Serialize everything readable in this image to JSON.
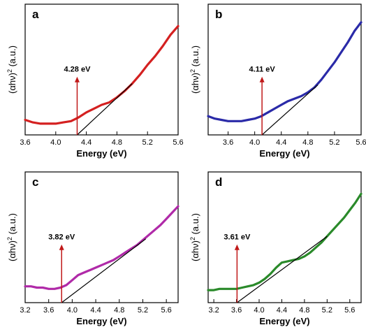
{
  "chart_data": [
    {
      "type": "line",
      "panel": "a",
      "xlabel": "Energy (eV)",
      "ylabel": "(αhν)2 (a.u.)",
      "xlim": [
        3.6,
        5.6
      ],
      "xticks": [
        "3.6",
        "4.0",
        "4.4",
        "4.8",
        "5.2",
        "5.6"
      ],
      "xtick_values": [
        3.6,
        4.0,
        4.4,
        4.8,
        5.2,
        5.6
      ],
      "series_color": "#d42020",
      "series": [
        {
          "x": [
            3.6,
            3.7,
            3.8,
            3.9,
            4.0,
            4.1,
            4.2,
            4.3,
            4.4,
            4.5,
            4.6,
            4.7,
            4.8,
            4.9,
            5.0,
            5.1,
            5.2,
            5.3,
            5.4,
            5.5,
            5.6
          ],
          "y": [
            0.12,
            0.1,
            0.09,
            0.09,
            0.09,
            0.1,
            0.11,
            0.14,
            0.18,
            0.21,
            0.24,
            0.26,
            0.3,
            0.35,
            0.41,
            0.48,
            0.56,
            0.63,
            0.71,
            0.8,
            0.87
          ]
        }
      ],
      "fit_line": {
        "x": [
          4.28,
          5.0
        ],
        "y": [
          0.0,
          0.41
        ]
      },
      "annotation": {
        "text": "4.28 eV",
        "x": 4.28
      }
    },
    {
      "type": "line",
      "panel": "b",
      "xlabel": "Energy (eV)",
      "ylabel": "(αhν)2 (a.u.)",
      "xlim": [
        3.3,
        5.6
      ],
      "xticks": [
        "3.6",
        "4.0",
        "4.4",
        "4.8",
        "5.2",
        "5.6"
      ],
      "xtick_values": [
        3.6,
        4.0,
        4.4,
        4.8,
        5.2,
        5.6
      ],
      "series_color": "#2a2aa8",
      "series": [
        {
          "x": [
            3.3,
            3.4,
            3.5,
            3.6,
            3.7,
            3.8,
            3.9,
            4.0,
            4.1,
            4.2,
            4.3,
            4.4,
            4.5,
            4.6,
            4.7,
            4.8,
            4.9,
            5.0,
            5.1,
            5.2,
            5.3,
            5.4,
            5.5,
            5.6
          ],
          "y": [
            0.15,
            0.13,
            0.12,
            0.11,
            0.11,
            0.11,
            0.12,
            0.13,
            0.15,
            0.18,
            0.21,
            0.24,
            0.27,
            0.29,
            0.31,
            0.34,
            0.38,
            0.44,
            0.51,
            0.58,
            0.66,
            0.74,
            0.83,
            0.9
          ]
        }
      ],
      "fit_line": {
        "x": [
          4.11,
          4.95
        ],
        "y": [
          0.0,
          0.4
        ]
      },
      "annotation": {
        "text": "4.11 eV",
        "x": 4.11
      }
    },
    {
      "type": "line",
      "panel": "c",
      "xlabel": "Energy (eV)",
      "ylabel": "(αhν)2 (a.u.)",
      "xlim": [
        3.2,
        5.8
      ],
      "xticks": [
        "3.2",
        "3.6",
        "4.0",
        "4.4",
        "4.8",
        "5.2",
        "5.6"
      ],
      "xtick_values": [
        3.2,
        3.6,
        4.0,
        4.4,
        4.8,
        5.2,
        5.6
      ],
      "series_color": "#b02aa8",
      "series": [
        {
          "x": [
            3.2,
            3.3,
            3.4,
            3.5,
            3.6,
            3.7,
            3.8,
            3.9,
            4.0,
            4.1,
            4.2,
            4.3,
            4.4,
            4.5,
            4.6,
            4.7,
            4.8,
            4.9,
            5.0,
            5.1,
            5.2,
            5.3,
            5.4,
            5.5,
            5.6,
            5.7,
            5.8
          ],
          "y": [
            0.13,
            0.13,
            0.12,
            0.12,
            0.11,
            0.11,
            0.12,
            0.14,
            0.18,
            0.22,
            0.24,
            0.26,
            0.28,
            0.3,
            0.32,
            0.34,
            0.37,
            0.4,
            0.43,
            0.46,
            0.5,
            0.54,
            0.58,
            0.62,
            0.67,
            0.72,
            0.77
          ]
        }
      ],
      "fit_line": {
        "x": [
          3.82,
          5.25
        ],
        "y": [
          0.0,
          0.51
        ]
      },
      "annotation": {
        "text": "3.82 eV",
        "x": 3.82
      }
    },
    {
      "type": "line",
      "panel": "d",
      "xlabel": "Energy (eV)",
      "ylabel": "(αhν)2 (a.u.)",
      "xlim": [
        3.1,
        5.8
      ],
      "xticks": [
        "3.2",
        "3.6",
        "4.0",
        "4.4",
        "4.8",
        "5.2",
        "5.6"
      ],
      "xtick_values": [
        3.2,
        3.6,
        4.0,
        4.4,
        4.8,
        5.2,
        5.6
      ],
      "series_color": "#2a8a2a",
      "series": [
        {
          "x": [
            3.1,
            3.2,
            3.3,
            3.4,
            3.5,
            3.6,
            3.7,
            3.8,
            3.9,
            4.0,
            4.1,
            4.2,
            4.3,
            4.4,
            4.5,
            4.6,
            4.7,
            4.8,
            4.9,
            5.0,
            5.1,
            5.2,
            5.3,
            5.4,
            5.5,
            5.6,
            5.7,
            5.8
          ],
          "y": [
            0.1,
            0.1,
            0.11,
            0.11,
            0.11,
            0.11,
            0.12,
            0.13,
            0.14,
            0.16,
            0.19,
            0.23,
            0.28,
            0.32,
            0.33,
            0.34,
            0.35,
            0.37,
            0.4,
            0.44,
            0.48,
            0.53,
            0.58,
            0.63,
            0.68,
            0.74,
            0.8,
            0.87
          ]
        }
      ],
      "fit_line": {
        "x": [
          3.61,
          5.2
        ],
        "y": [
          0.0,
          0.53
        ]
      },
      "annotation": {
        "text": "3.61 eV",
        "x": 3.61
      }
    }
  ]
}
